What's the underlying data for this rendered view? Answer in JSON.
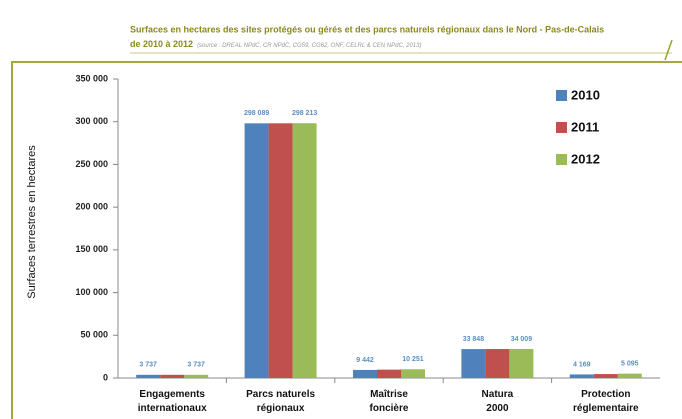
{
  "chart_data": {
    "type": "bar",
    "title": "Surfaces en hectares des sites protégés ou gérés et des parcs naturels régionaux dans le Nord - Pas-de-Calais",
    "subtitle": "de 2010 à 2012",
    "source": "(source : DREAL NPdC, CR NPdC, CG59, CG62, ONF, CELRL & CEN NPdC, 2013)",
    "ylabel": "Surfaces terrestres en hectares",
    "categories": [
      "Engagements internationaux",
      "Parcs naturels régionaux",
      "Maîtrise foncière",
      "Natura 2000",
      "Protection réglementaire"
    ],
    "series": [
      {
        "name": "2010",
        "color": "#4f81bd",
        "values": [
          3737,
          298089,
          9442,
          33848,
          4169
        ],
        "value_labels": [
          "3 737",
          "298 089",
          "9 442",
          "33 848",
          "4 169"
        ]
      },
      {
        "name": "2011",
        "color": "#c0504d",
        "values": [
          3737,
          298150,
          9800,
          33900,
          4600
        ]
      },
      {
        "name": "2012",
        "color": "#9bbb59",
        "values": [
          3737,
          298213,
          10251,
          34009,
          5095
        ],
        "value_labels": [
          "3 737",
          "298 213",
          "10 251",
          "34 009",
          "5 095"
        ]
      }
    ],
    "ylim": [
      0,
      350000
    ],
    "yticks": [
      0,
      {
        "value": 50000,
        "label": "50 000"
      },
      {
        "value": 100000,
        "label": "100 000"
      },
      {
        "value": 150000,
        "label": "150 000"
      },
      {
        "value": 200000,
        "label": "200 000"
      },
      {
        "value": 250000,
        "label": "250 000"
      },
      {
        "value": 300000,
        "label": "300 000"
      },
      {
        "value": 350000,
        "label": "350 000"
      }
    ],
    "grid": false,
    "legend": "top-right"
  }
}
